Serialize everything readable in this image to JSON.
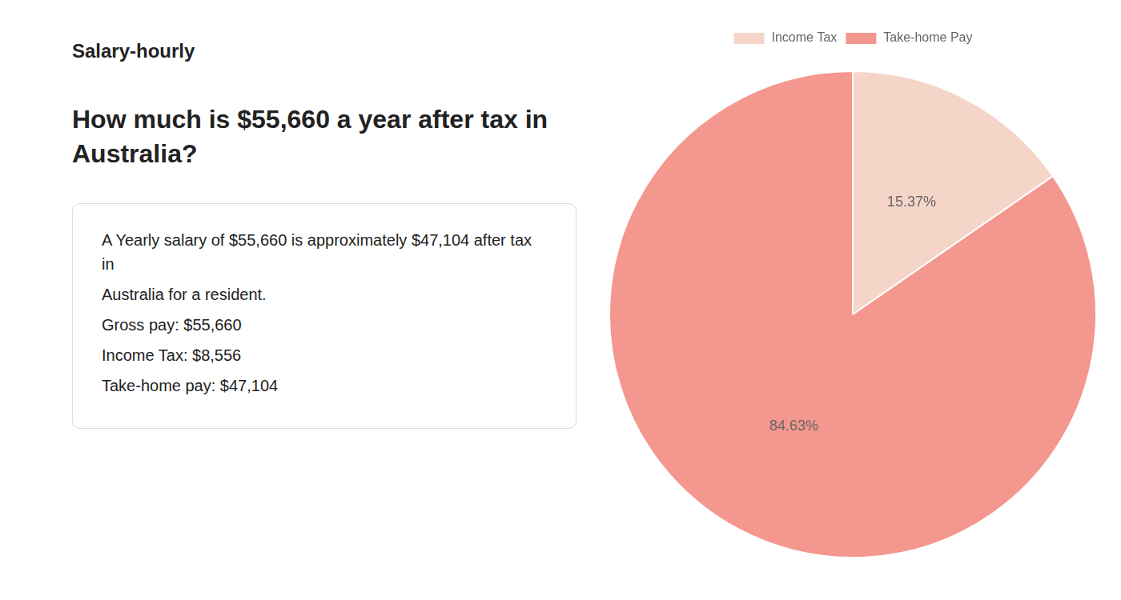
{
  "chart_data": {
    "type": "pie",
    "title": "How much is $55,660 a year after tax in\nAustralia?",
    "annotations": [
      "Salary-hourly",
      "A Yearly salary of $55,660 is approximately $47,104 after tax in",
      "Australia for a resident.",
      "Gross pay: $55,660",
      "Income Tax: $8,556",
      "Take-home pay: $47,104"
    ],
    "categories": [
      "Income Tax",
      "Take-home Pay"
    ],
    "values": [
      15.37,
      84.63
    ],
    "value_labels": [
      "15.37%",
      "84.63%"
    ],
    "colors": [
      "#f5d5c8",
      "#f4978e"
    ],
    "data_labels": true,
    "legend": "top"
  }
}
